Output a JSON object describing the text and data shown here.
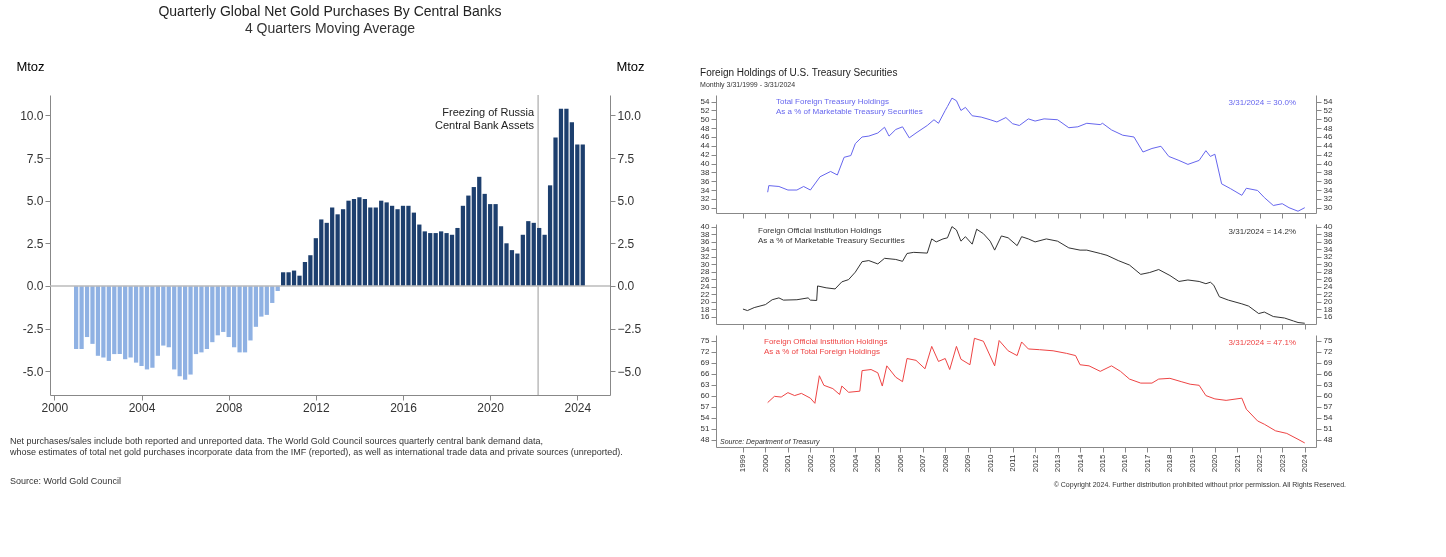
{
  "chart_data": [
    {
      "type": "bar",
      "title": "Quarterly Global Net Gold Purchases By Central Banks",
      "subtitle": "4 Quarters Moving Average",
      "ylabel": "Mtoz",
      "y2label": "Mtoz",
      "x": [
        2001,
        2001.25,
        2001.5,
        2001.75,
        2002,
        2002.25,
        2002.5,
        2002.75,
        2003,
        2003.25,
        2003.5,
        2003.75,
        2004,
        2004.25,
        2004.5,
        2004.75,
        2005,
        2005.25,
        2005.5,
        2005.75,
        2006,
        2006.25,
        2006.5,
        2006.75,
        2007,
        2007.25,
        2007.5,
        2007.75,
        2008,
        2008.25,
        2008.5,
        2008.75,
        2009,
        2009.25,
        2009.5,
        2009.75,
        2010,
        2010.25,
        2010.5,
        2010.75,
        2011,
        2011.25,
        2011.5,
        2011.75,
        2012,
        2012.25,
        2012.5,
        2012.75,
        2013,
        2013.25,
        2013.5,
        2013.75,
        2014,
        2014.25,
        2014.5,
        2014.75,
        2015,
        2015.25,
        2015.5,
        2015.75,
        2016,
        2016.25,
        2016.5,
        2016.75,
        2017,
        2017.25,
        2017.5,
        2017.75,
        2018,
        2018.25,
        2018.5,
        2018.75,
        2019,
        2019.25,
        2019.5,
        2019.75,
        2020,
        2020.25,
        2020.5,
        2020.75,
        2021,
        2021.25,
        2021.5,
        2021.75,
        2022,
        2022.25,
        2022.5,
        2022.75,
        2023,
        2023.25,
        2023.5,
        2023.75,
        2024,
        2024.25
      ],
      "values": [
        -3.7,
        -3.7,
        -3.0,
        -3.4,
        -4.1,
        -4.2,
        -4.4,
        -4.0,
        -4.0,
        -4.3,
        -4.2,
        -4.5,
        -4.7,
        -4.9,
        -4.8,
        -4.1,
        -3.5,
        -3.6,
        -4.9,
        -5.3,
        -5.5,
        -5.2,
        -4.0,
        -3.9,
        -3.7,
        -3.3,
        -2.9,
        -2.7,
        -3.0,
        -3.6,
        -3.9,
        -3.9,
        -3.2,
        -2.4,
        -1.8,
        -1.7,
        -1.0,
        -0.3,
        0.8,
        0.8,
        0.9,
        0.6,
        1.4,
        1.8,
        2.8,
        3.9,
        3.7,
        4.6,
        4.2,
        4.5,
        5.0,
        5.1,
        5.2,
        5.1,
        4.6,
        4.6,
        5.0,
        4.9,
        4.7,
        4.5,
        4.7,
        4.7,
        4.3,
        3.6,
        3.2,
        3.1,
        3.1,
        3.2,
        3.1,
        3.0,
        3.4,
        4.7,
        5.3,
        5.8,
        6.4,
        5.4,
        4.8,
        4.8,
        3.5,
        2.5,
        2.1,
        1.9,
        3.0,
        3.8,
        3.7,
        3.4,
        3.0,
        5.9,
        8.7,
        10.4,
        10.4,
        9.6,
        8.3,
        8.3
      ],
      "colors": [
        "#8fb1e3",
        "#8fb1e3",
        "#8fb1e3",
        "#8fb1e3",
        "#8fb1e3",
        "#8fb1e3",
        "#8fb1e3",
        "#8fb1e3",
        "#8fb1e3",
        "#8fb1e3",
        "#8fb1e3",
        "#8fb1e3",
        "#8fb1e3",
        "#8fb1e3",
        "#8fb1e3",
        "#8fb1e3",
        "#8fb1e3",
        "#8fb1e3",
        "#8fb1e3",
        "#8fb1e3",
        "#8fb1e3",
        "#8fb1e3",
        "#8fb1e3",
        "#8fb1e3",
        "#8fb1e3",
        "#8fb1e3",
        "#8fb1e3",
        "#8fb1e3",
        "#8fb1e3",
        "#8fb1e3",
        "#8fb1e3",
        "#8fb1e3",
        "#8fb1e3",
        "#8fb1e3",
        "#8fb1e3",
        "#8fb1e3",
        "#8fb1e3",
        "#8fb1e3",
        "#1d3f6e",
        "#1d3f6e",
        "#1d3f6e",
        "#1d3f6e",
        "#1d3f6e",
        "#1d3f6e",
        "#1d3f6e",
        "#1d3f6e",
        "#1d3f6e",
        "#1d3f6e",
        "#1d3f6e",
        "#1d3f6e",
        "#1d3f6e",
        "#1d3f6e",
        "#1d3f6e",
        "#1d3f6e",
        "#1d3f6e",
        "#1d3f6e",
        "#1d3f6e",
        "#1d3f6e",
        "#1d3f6e",
        "#1d3f6e",
        "#1d3f6e",
        "#1d3f6e",
        "#1d3f6e",
        "#1d3f6e",
        "#1d3f6e",
        "#1d3f6e",
        "#1d3f6e",
        "#1d3f6e",
        "#1d3f6e",
        "#1d3f6e",
        "#1d3f6e",
        "#1d3f6e",
        "#1d3f6e",
        "#1d3f6e",
        "#1d3f6e",
        "#1d3f6e",
        "#1d3f6e",
        "#1d3f6e",
        "#1d3f6e",
        "#1d3f6e",
        "#1d3f6e",
        "#1d3f6e",
        "#1d3f6e",
        "#1d3f6e",
        "#1d3f6e",
        "#1d3f6e",
        "#1d3f6e",
        "#1d3f6e",
        "#1d3f6e",
        "#1d3f6e",
        "#1d3f6e",
        "#1d3f6e",
        "#1d3f6e",
        "#1d3f6e"
      ],
      "xlim": [
        1999.8,
        2025.5
      ],
      "xticks": [
        2000,
        2004,
        2008,
        2012,
        2016,
        2020,
        2024
      ],
      "ylim": [
        -6.4,
        11.2
      ],
      "yticks": [
        {
          "value": -5,
          "label": "-5.0"
        },
        {
          "value": -2.5,
          "label": "-2.5"
        },
        {
          "value": 0,
          "label": "0.0"
        },
        {
          "value": 2.5,
          "label": "2.5"
        },
        {
          "value": 5,
          "label": "5.0"
        },
        {
          "value": 7.5,
          "label": "7.5"
        },
        {
          "value": 10,
          "label": "10.0"
        }
      ],
      "y2lim": [
        -6.4,
        11.2
      ],
      "y2ticks": [
        {
          "value": -5,
          "label": "−5.0"
        },
        {
          "value": -2.5,
          "label": "−2.5"
        },
        {
          "value": 0,
          "label": "0.0"
        },
        {
          "value": 2.5,
          "label": "2.5"
        },
        {
          "value": 5,
          "label": "5.0"
        },
        {
          "value": 7.5,
          "label": "7.5"
        },
        {
          "value": 10,
          "label": "10.0"
        }
      ],
      "ref_lines": [
        {
          "axis": "x",
          "value": 2022.2,
          "label": "Freezing of Russia\nCentral Bank Assets",
          "color": "#999999"
        },
        {
          "axis": "y",
          "value": 0,
          "color": "#bbbbbb"
        }
      ],
      "annotations": [
        "Net purchases/sales include both reported and unreported data. The World Gold Council sources quarterly central bank demand data,\nwhose estimates of total net gold purchases incorporate data from the IMF (reported), as well as international trade data and private sources (unreported).",
        "Source: World Gold Council"
      ]
    },
    {
      "type": "line",
      "title": "Foreign Holdings of U.S. Treasury Securities",
      "subtitle": "Monthly 3/31/1999 - 3/31/2024",
      "tick_labels": "y",
      "series": [
        {
          "name": "Total Foreign Treasury Holdings\nAs a % of Marketable Treasury Securities",
          "color": "#6666ee",
          "x": [
            2000.1,
            2000.15,
            2000.6,
            2001.0,
            2001.4,
            2001.7,
            2002.0,
            2002.43,
            2002.9,
            2003.2,
            2003.5,
            2003.8,
            2004.0,
            2004.3,
            2004.6,
            2005.0,
            2005.3,
            2005.5,
            2005.8,
            2006.1,
            2006.4,
            2006.7,
            2007.2,
            2007.5,
            2007.7,
            2008.0,
            2008.1,
            2008.3,
            2008.5,
            2008.7,
            2008.9,
            2009.2,
            2009.6,
            2010.0,
            2010.3,
            2010.7,
            2011.0,
            2011.3,
            2011.7,
            2012.0,
            2012.4,
            2013.0,
            2013.5,
            2013.9,
            2014.3,
            2014.9,
            2015.0,
            2015.4,
            2015.9,
            2016.4,
            2016.8,
            2017.2,
            2017.6,
            2017.95,
            2018.4,
            2018.8,
            2019.3,
            2019.6,
            2019.8,
            2020.0,
            2020.3,
            2020.7,
            2021.2,
            2021.4,
            2021.9,
            2022.2,
            2022.6,
            2023.0,
            2023.3,
            2023.7,
            2024.0
          ],
          "values": [
            33.5,
            35.0,
            34.8,
            34.0,
            34.0,
            34.8,
            34.0,
            37.0,
            38.2,
            37.4,
            41.4,
            41.8,
            44.5,
            46.0,
            46.2,
            46.9,
            48.2,
            46.2,
            47.7,
            48.3,
            45.8,
            46.9,
            48.6,
            49.9,
            49.1,
            52.0,
            52.9,
            54.8,
            54.2,
            52.0,
            52.7,
            50.8,
            50.5,
            49.9,
            49.4,
            50.4,
            49.0,
            48.6,
            50.1,
            49.6,
            50.1,
            49.9,
            48.1,
            48.3,
            49.1,
            48.8,
            49.1,
            47.6,
            46.4,
            46.0,
            42.6,
            43.4,
            43.9,
            41.6,
            40.7,
            39.8,
            40.7,
            42.9,
            41.6,
            42.1,
            35.4,
            34.3,
            32.8,
            34.4,
            33.9,
            32.3,
            30.5,
            30.9,
            30.0,
            29.2,
            30.0
          ]
        }
      ],
      "xlim": [
        1997.8,
        2024.5
      ],
      "xticks": [
        1999,
        2000,
        2001,
        2002,
        2003,
        2004,
        2005,
        2006,
        2007,
        2008,
        2009,
        2010,
        2011,
        2012,
        2013,
        2014,
        2015,
        2016,
        2017,
        2018,
        2019,
        2020,
        2021,
        2022,
        2023,
        2024
      ],
      "ylim": [
        28.8,
        55.5
      ],
      "yticks": [
        30,
        32,
        34,
        36,
        38,
        40,
        42,
        44,
        46,
        48,
        50,
        52,
        54
      ],
      "y2lim": [
        28.8,
        55.5
      ],
      "y2ticks": [
        30,
        32,
        34,
        36,
        38,
        40,
        42,
        44,
        46,
        48,
        50,
        52,
        54
      ],
      "annotations": [
        "3/31/2024 = 30.0%"
      ]
    },
    {
      "type": "line",
      "tick_labels": "y",
      "series": [
        {
          "name": "Foreign Official Institution Holdings\nAs a % of Marketable Treasury Securities",
          "color": "#333333",
          "x": [
            1999.0,
            1999.2,
            1999.5,
            2000.0,
            2000.3,
            2000.6,
            2000.8,
            2001.4,
            2001.9,
            2002.0,
            2002.28,
            2002.32,
            2002.7,
            2003.1,
            2003.4,
            2003.7,
            2004.0,
            2004.3,
            2004.6,
            2005.0,
            2005.3,
            2005.8,
            2006.1,
            2006.3,
            2006.6,
            2007.2,
            2007.4,
            2007.6,
            2007.9,
            2008.1,
            2008.3,
            2008.5,
            2008.7,
            2008.9,
            2009.2,
            2009.4,
            2009.7,
            2010.0,
            2010.2,
            2010.5,
            2010.8,
            2011.2,
            2011.4,
            2011.7,
            2012.0,
            2012.5,
            2013.0,
            2013.5,
            2014.0,
            2014.3,
            2014.9,
            2015.2,
            2015.7,
            2016.2,
            2016.7,
            2017.1,
            2017.5,
            2018.0,
            2018.4,
            2018.8,
            2019.3,
            2019.6,
            2019.8,
            2019.95,
            2020.2,
            2020.6,
            2021.2,
            2021.5,
            2021.95,
            2022.2,
            2022.6,
            2023.1,
            2023.5,
            2023.7,
            2024.0
          ],
          "values": [
            18.0,
            17.6,
            18.4,
            19.2,
            20.5,
            21.0,
            20.4,
            20.5,
            21.0,
            20.4,
            20.3,
            24.2,
            23.7,
            23.4,
            25.3,
            25.9,
            27.9,
            30.7,
            31.0,
            30.1,
            31.6,
            31.3,
            30.8,
            32.9,
            33.2,
            33.0,
            36.8,
            36.0,
            36.8,
            37.1,
            40.1,
            39.2,
            36.2,
            37.4,
            35.4,
            39.4,
            38.2,
            36.2,
            33.8,
            37.6,
            37.1,
            35.0,
            37.4,
            36.8,
            36.0,
            36.8,
            36.2,
            34.4,
            33.8,
            33.8,
            32.9,
            32.4,
            31.0,
            29.8,
            27.3,
            27.8,
            28.6,
            27.0,
            25.4,
            25.8,
            25.4,
            24.8,
            25.2,
            24.4,
            21.3,
            20.4,
            19.4,
            18.8,
            16.8,
            17.2,
            16.0,
            15.6,
            14.8,
            14.4,
            14.2
          ]
        }
      ],
      "xlim": [
        1997.8,
        2024.5
      ],
      "xticks": [
        1999,
        2000,
        2001,
        2002,
        2003,
        2004,
        2005,
        2006,
        2007,
        2008,
        2009,
        2010,
        2011,
        2012,
        2013,
        2014,
        2015,
        2016,
        2017,
        2018,
        2019,
        2020,
        2021,
        2022,
        2023,
        2024
      ],
      "ylim": [
        14.0,
        40.8
      ],
      "yticks": [
        16,
        18,
        20,
        22,
        24,
        26,
        28,
        30,
        32,
        34,
        36,
        38,
        40
      ],
      "y2lim": [
        14.0,
        40.8
      ],
      "y2ticks": [
        16,
        18,
        20,
        22,
        24,
        26,
        28,
        30,
        32,
        34,
        36,
        38,
        40
      ],
      "annotations": [
        "3/31/2024 = 14.2%"
      ]
    },
    {
      "type": "line",
      "series": [
        {
          "name": "Foreign Official Institution Holdings\nAs a % of Total Foreign Holdings",
          "color": "#ee4444",
          "x": [
            2000.1,
            2000.4,
            2000.7,
            2001.0,
            2001.3,
            2001.6,
            2002.0,
            2002.2,
            2002.4,
            2002.6,
            2003.0,
            2003.3,
            2003.4,
            2003.7,
            2004.2,
            2004.3,
            2004.7,
            2005.0,
            2005.2,
            2005.4,
            2005.8,
            2006.1,
            2006.3,
            2006.7,
            2007.1,
            2007.4,
            2007.7,
            2008.0,
            2008.2,
            2008.5,
            2008.7,
            2009.1,
            2009.3,
            2009.7,
            2010.2,
            2010.4,
            2010.8,
            2011.2,
            2011.4,
            2011.7,
            2012.2,
            2012.8,
            2013.4,
            2013.8,
            2014.0,
            2014.4,
            2014.9,
            2015.4,
            2015.8,
            2016.2,
            2016.7,
            2017.2,
            2017.5,
            2018.0,
            2018.5,
            2018.9,
            2019.3,
            2019.6,
            2020.0,
            2020.5,
            2021.2,
            2021.4,
            2021.9,
            2022.2,
            2022.7,
            2023.2,
            2023.7,
            2024.0
          ],
          "values": [
            58.1,
            59.8,
            59.6,
            60.8,
            60.0,
            60.6,
            59.3,
            57.9,
            65.4,
            62.8,
            61.9,
            60.3,
            62.6,
            60.9,
            61.2,
            66.8,
            67.1,
            66.2,
            62.6,
            68.1,
            65.0,
            63.8,
            70.1,
            69.6,
            67.3,
            73.4,
            69.3,
            70.1,
            67.1,
            73.4,
            69.9,
            68.4,
            75.6,
            74.8,
            68.1,
            75.0,
            72.2,
            70.9,
            74.6,
            72.7,
            72.5,
            72.2,
            71.5,
            70.9,
            68.4,
            68.1,
            66.6,
            68.1,
            66.6,
            64.5,
            63.4,
            63.4,
            64.5,
            64.7,
            63.8,
            63.1,
            62.8,
            60.0,
            59.1,
            58.7,
            59.3,
            56.3,
            53.1,
            52.2,
            50.4,
            49.7,
            48.1,
            47.1
          ]
        }
      ],
      "xlim": [
        1997.8,
        2024.5
      ],
      "xticks": [
        1999,
        2000,
        2001,
        2002,
        2003,
        2004,
        2005,
        2006,
        2007,
        2008,
        2009,
        2010,
        2011,
        2012,
        2013,
        2014,
        2015,
        2016,
        2017,
        2018,
        2019,
        2020,
        2021,
        2022,
        2023,
        2024
      ],
      "ylim": [
        46.0,
        76.5
      ],
      "yticks": [
        48,
        51,
        54,
        57,
        60,
        63,
        66,
        69,
        72,
        75
      ],
      "y2lim": [
        46.0,
        76.5
      ],
      "y2ticks": [
        48,
        51,
        54,
        57,
        60,
        63,
        66,
        69,
        72,
        75
      ],
      "annotations": [
        "3/31/2024 = 47.1%",
        "Source: Department of Treasury",
        "© Copyright 2024. Further distribution prohibited without prior permission. All Rights Reserved."
      ]
    }
  ]
}
